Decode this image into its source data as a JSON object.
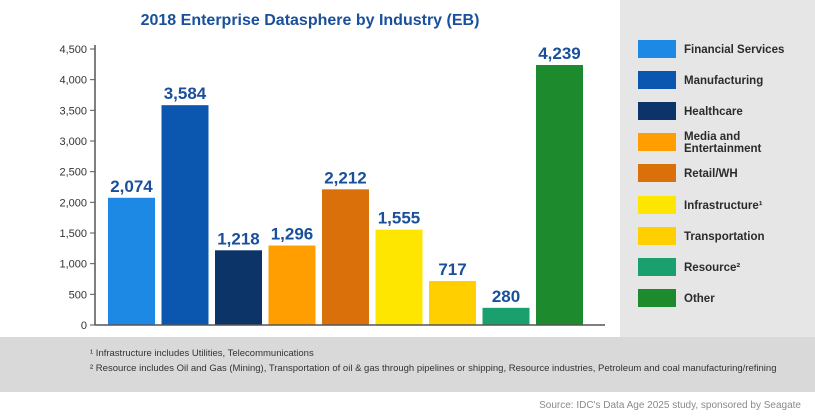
{
  "chart_data": {
    "type": "bar",
    "title": "2018 Enterprise Datasphere by Industry (EB)",
    "xlabel": "",
    "ylabel": "",
    "ylim": [
      0,
      4500
    ],
    "yticks": [
      0,
      500,
      1000,
      1500,
      2000,
      2500,
      3000,
      3500,
      4000,
      4500
    ],
    "ytick_labels": [
      "0",
      "500",
      "1,000",
      "1,500",
      "2,000",
      "2,500",
      "3,000",
      "3,500",
      "4,000",
      "4,500"
    ],
    "grid": false,
    "legend_position": "right",
    "categories": [
      "Financial Services",
      "Manufacturing",
      "Healthcare",
      "Media and Entertainment",
      "Retail/WH",
      "Infrastructure¹",
      "Transportation",
      "Resource²",
      "Other"
    ],
    "values": [
      2074,
      3584,
      1218,
      1296,
      2212,
      1555,
      717,
      280,
      4239
    ],
    "value_labels": [
      "2,074",
      "3,584",
      "1,218",
      "1,296",
      "2,212",
      "1,555",
      "717",
      "280",
      "4,239"
    ],
    "colors": [
      "#1e88e5",
      "#0b57b0",
      "#0c3468",
      "#ff9e00",
      "#d9700a",
      "#ffe600",
      "#ffcf00",
      "#1aa06e",
      "#1e8a2e"
    ]
  },
  "footnotes": [
    "¹ Infrastructure includes Utilities, Telecommunications",
    "² Resource includes Oil and Gas (Mining), Transportation of oil & gas through pipelines or shipping, Resource industries, Petroleum and coal manufacturing/refining"
  ],
  "source": "Source: IDC's Data Age 2025 study, sponsored by Seagate",
  "colors": {
    "title": "#1a4f9c",
    "value_label": "#1a4f9c",
    "legend_bg": "#e6e6e6",
    "footnote_bg": "#d9d9d9"
  }
}
